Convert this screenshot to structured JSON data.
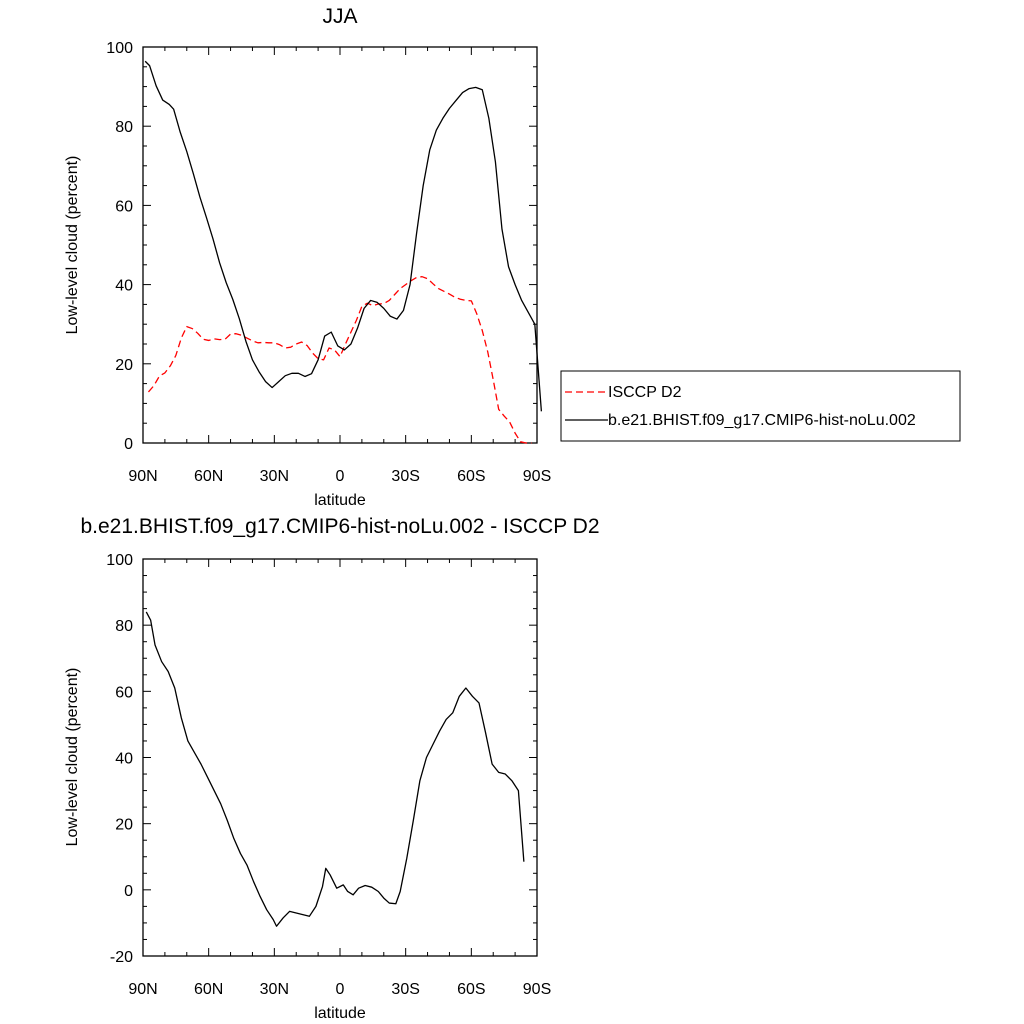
{
  "chart_data": [
    {
      "type": "line",
      "title": "JJA",
      "xlabel": "latitude",
      "ylabel": "Low-level cloud (percent)",
      "xlim": [
        90,
        -90
      ],
      "ylim": [
        0,
        100
      ],
      "x_tick_values": [
        90,
        60,
        30,
        0,
        -30,
        -60,
        -90
      ],
      "x_tick_labels": [
        "90N",
        "60N",
        "30N",
        "0",
        "30S",
        "60S",
        "90S"
      ],
      "y_ticks": [
        0,
        20,
        40,
        60,
        80,
        100
      ],
      "legend_position": "right",
      "legend": [
        {
          "label": "ISCCP D2",
          "color": "#ff0000",
          "dash": "dashed"
        },
        {
          "label": "b.e21.BHIST.f09_g17.CMIP6-hist-noLu.002",
          "color": "#000000",
          "dash": "solid"
        }
      ],
      "series": [
        {
          "name": "ISCCP D2",
          "color": "#ff0000",
          "dash": "dashed",
          "points": [
            [
              87.5,
              12.9
            ],
            [
              85,
              14.5
            ],
            [
              82.5,
              16.9
            ],
            [
              80,
              17.7
            ],
            [
              77.5,
              19.5
            ],
            [
              75,
              22.1
            ],
            [
              72.5,
              26.5
            ],
            [
              70,
              29.4
            ],
            [
              67.5,
              28.9
            ],
            [
              65,
              27.7
            ],
            [
              62.5,
              26.2
            ],
            [
              60,
              25.9
            ],
            [
              57.5,
              26.3
            ],
            [
              55,
              26.1
            ],
            [
              52.5,
              26.2
            ],
            [
              50,
              27.5
            ],
            [
              47.5,
              27.6
            ],
            [
              45,
              27.2
            ],
            [
              42.5,
              26.5
            ],
            [
              40,
              25.8
            ],
            [
              37.5,
              25.3
            ],
            [
              35,
              25.4
            ],
            [
              32.5,
              25.3
            ],
            [
              30,
              25.3
            ],
            [
              27.5,
              24.8
            ],
            [
              25,
              24.0
            ],
            [
              22.5,
              24.2
            ],
            [
              20,
              25.0
            ],
            [
              17.5,
              25.5
            ],
            [
              15,
              24.6
            ],
            [
              12.5,
              22.7
            ],
            [
              10,
              21.3
            ],
            [
              7.5,
              21.0
            ],
            [
              5,
              24.0
            ],
            [
              2.5,
              23.5
            ],
            [
              0,
              21.8
            ],
            [
              -2.5,
              25.0
            ],
            [
              -5,
              28.0
            ],
            [
              -7.5,
              31.0
            ],
            [
              -10,
              34.5
            ],
            [
              -12.5,
              35.3
            ],
            [
              -15,
              34.7
            ],
            [
              -17.5,
              35.1
            ],
            [
              -20,
              35.2
            ],
            [
              -22.5,
              36.0
            ],
            [
              -25,
              37.5
            ],
            [
              -27.5,
              39.0
            ],
            [
              -30,
              40.0
            ],
            [
              -32.5,
              41.0
            ],
            [
              -35,
              41.8
            ],
            [
              -37.5,
              42.0
            ],
            [
              -40,
              41.5
            ],
            [
              -42.5,
              40.2
            ],
            [
              -45,
              39.0
            ],
            [
              -47.5,
              38.3
            ],
            [
              -50,
              37.6
            ],
            [
              -52.5,
              36.8
            ],
            [
              -55,
              36.3
            ],
            [
              -57.5,
              36.0
            ],
            [
              -60,
              35.9
            ],
            [
              -62.5,
              32.6
            ],
            [
              -65,
              28.4
            ],
            [
              -67.5,
              23.0
            ],
            [
              -70,
              16.0
            ],
            [
              -72.5,
              8.5
            ],
            [
              -75,
              6.8
            ],
            [
              -77.5,
              5.3
            ],
            [
              -80,
              2.5
            ],
            [
              -82.5,
              0.3
            ],
            [
              -85,
              0.0
            ],
            [
              -87.5,
              0.0
            ]
          ]
        },
        {
          "name": "b.e21.BHIST.f09_g17.CMIP6-hist-noLu.002",
          "color": "#000000",
          "dash": "solid",
          "points": [
            [
              89,
              96.4
            ],
            [
              87,
              95.3
            ],
            [
              84,
              90.2
            ],
            [
              81,
              86.6
            ],
            [
              78,
              85.5
            ],
            [
              76,
              84.3
            ],
            [
              73,
              78.5
            ],
            [
              70,
              73.6
            ],
            [
              67,
              68.0
            ],
            [
              64,
              62.1
            ],
            [
              61,
              56.9
            ],
            [
              58,
              51.5
            ],
            [
              55,
              45.5
            ],
            [
              52,
              40.5
            ],
            [
              49,
              36.3
            ],
            [
              46,
              31.4
            ],
            [
              43,
              25.7
            ],
            [
              40,
              21.0
            ],
            [
              37,
              18.0
            ],
            [
              34,
              15.5
            ],
            [
              31,
              14.0
            ],
            [
              28,
              15.5
            ],
            [
              25,
              17.0
            ],
            [
              22,
              17.6
            ],
            [
              19,
              17.6
            ],
            [
              16,
              16.8
            ],
            [
              13,
              17.5
            ],
            [
              10,
              21.0
            ],
            [
              7,
              27.0
            ],
            [
              4,
              28.0
            ],
            [
              1,
              24.5
            ],
            [
              -2,
              23.5
            ],
            [
              -5,
              25.0
            ],
            [
              -8,
              29.0
            ],
            [
              -11,
              34.0
            ],
            [
              -14,
              36.0
            ],
            [
              -17,
              35.5
            ],
            [
              -20,
              34.0
            ],
            [
              -23,
              32.0
            ],
            [
              -26,
              31.3
            ],
            [
              -29,
              33.5
            ],
            [
              -32,
              40.0
            ],
            [
              -35,
              53.0
            ],
            [
              -38,
              65.0
            ],
            [
              -41,
              74.0
            ],
            [
              -44,
              79.0
            ],
            [
              -47,
              82.0
            ],
            [
              -50,
              84.5
            ],
            [
              -53,
              86.5
            ],
            [
              -56,
              88.5
            ],
            [
              -59,
              89.5
            ],
            [
              -62,
              89.8
            ],
            [
              -65,
              89.2
            ],
            [
              -68,
              82.0
            ],
            [
              -71,
              71.0
            ],
            [
              -74,
              54.0
            ],
            [
              -77,
              44.5
            ],
            [
              -80,
              40.0
            ],
            [
              -83,
              36.0
            ],
            [
              -86,
              33.0
            ],
            [
              -89,
              30.0
            ],
            [
              -92,
              8.0
            ]
          ]
        }
      ]
    },
    {
      "type": "line",
      "title": "b.e21.BHIST.f09_g17.CMIP6-hist-noLu.002 - ISCCP D2",
      "xlabel": "latitude",
      "ylabel": "Low-level cloud (percent)",
      "xlim": [
        90,
        -90
      ],
      "ylim": [
        -20,
        100
      ],
      "x_tick_values": [
        90,
        60,
        30,
        0,
        -30,
        -60,
        -90
      ],
      "x_tick_labels": [
        "90N",
        "60N",
        "30N",
        "0",
        "30S",
        "60S",
        "90S"
      ],
      "y_ticks": [
        -20,
        0,
        20,
        40,
        60,
        80,
        100
      ],
      "series": [
        {
          "color": "#000000",
          "dash": "solid",
          "points": [
            [
              88.5,
              84.0
            ],
            [
              86.5,
              81.5
            ],
            [
              84.5,
              74.0
            ],
            [
              81.5,
              69.0
            ],
            [
              78.5,
              66.0
            ],
            [
              75.5,
              61.0
            ],
            [
              72.5,
              52.0
            ],
            [
              69.5,
              45.0
            ],
            [
              66.5,
              41.5
            ],
            [
              63.5,
              38.0
            ],
            [
              60.5,
              34.0
            ],
            [
              57.5,
              30.0
            ],
            [
              54.5,
              26.0
            ],
            [
              51.5,
              21.0
            ],
            [
              48.5,
              15.5
            ],
            [
              45.5,
              11.0
            ],
            [
              42.5,
              7.5
            ],
            [
              39.5,
              2.5
            ],
            [
              36.5,
              -2.0
            ],
            [
              33.5,
              -6.0
            ],
            [
              30.5,
              -9.0
            ],
            [
              29,
              -11.0
            ],
            [
              26,
              -8.5
            ],
            [
              23,
              -6.5
            ],
            [
              20,
              -7.0
            ],
            [
              17,
              -7.5
            ],
            [
              14,
              -8.0
            ],
            [
              11,
              -5.0
            ],
            [
              8,
              1.0
            ],
            [
              6.5,
              6.5
            ],
            [
              4.5,
              4.5
            ],
            [
              1.5,
              0.5
            ],
            [
              -1.5,
              1.5
            ],
            [
              -3.5,
              -0.5
            ],
            [
              -6,
              -1.5
            ],
            [
              -8.5,
              0.5
            ],
            [
              -11.5,
              1.3
            ],
            [
              -14.5,
              0.8
            ],
            [
              -17.5,
              -0.5
            ],
            [
              -20,
              -2.5
            ],
            [
              -22.5,
              -4.0
            ],
            [
              -25.5,
              -4.2
            ],
            [
              -27.5,
              -0.5
            ],
            [
              -30.5,
              9.5
            ],
            [
              -33.5,
              21.0
            ],
            [
              -36.5,
              33.0
            ],
            [
              -39.5,
              40.0
            ],
            [
              -42.5,
              44.0
            ],
            [
              -45.5,
              48.0
            ],
            [
              -48.5,
              51.5
            ],
            [
              -51.5,
              53.5
            ],
            [
              -54.5,
              58.5
            ],
            [
              -57.5,
              61.0
            ],
            [
              -60.5,
              58.5
            ],
            [
              -63.5,
              56.5
            ],
            [
              -66.5,
              47.5
            ],
            [
              -69.5,
              38.0
            ],
            [
              -72.5,
              35.5
            ],
            [
              -75.5,
              35.0
            ],
            [
              -78.5,
              33.0
            ],
            [
              -81.5,
              30.0
            ],
            [
              -84,
              8.5
            ]
          ]
        }
      ]
    }
  ]
}
